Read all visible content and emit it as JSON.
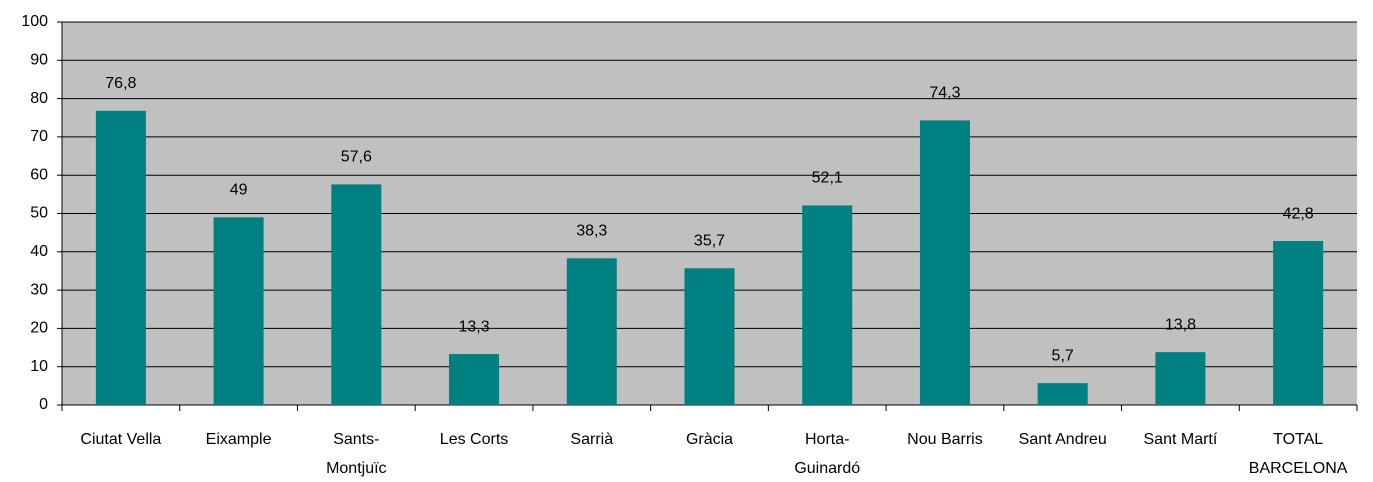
{
  "chart_data": {
    "type": "bar",
    "categories": [
      "Ciutat Vella",
      "Eixample",
      [
        "Sants-",
        "Montjuïc"
      ],
      "Les Corts",
      "Sarrià",
      "Gràcia",
      [
        "Horta-",
        "Guinardó"
      ],
      "Nou Barris",
      "Sant Andreu",
      "Sant Martí",
      [
        "TOTAL",
        "BARCELONA"
      ]
    ],
    "values": [
      76.8,
      49,
      57.6,
      13.3,
      38.3,
      35.7,
      52.1,
      74.3,
      5.7,
      13.8,
      42.8
    ],
    "value_labels": [
      "76,8",
      "49",
      "57,6",
      "13,3",
      "38,3",
      "35,7",
      "52,1",
      "74,3",
      "5,7",
      "13,8",
      "42,8"
    ],
    "color": "#008080",
    "ylim": [
      0,
      100
    ],
    "yticks": [
      0,
      10,
      20,
      30,
      40,
      50,
      60,
      70,
      80,
      90,
      100
    ],
    "grid": true
  }
}
